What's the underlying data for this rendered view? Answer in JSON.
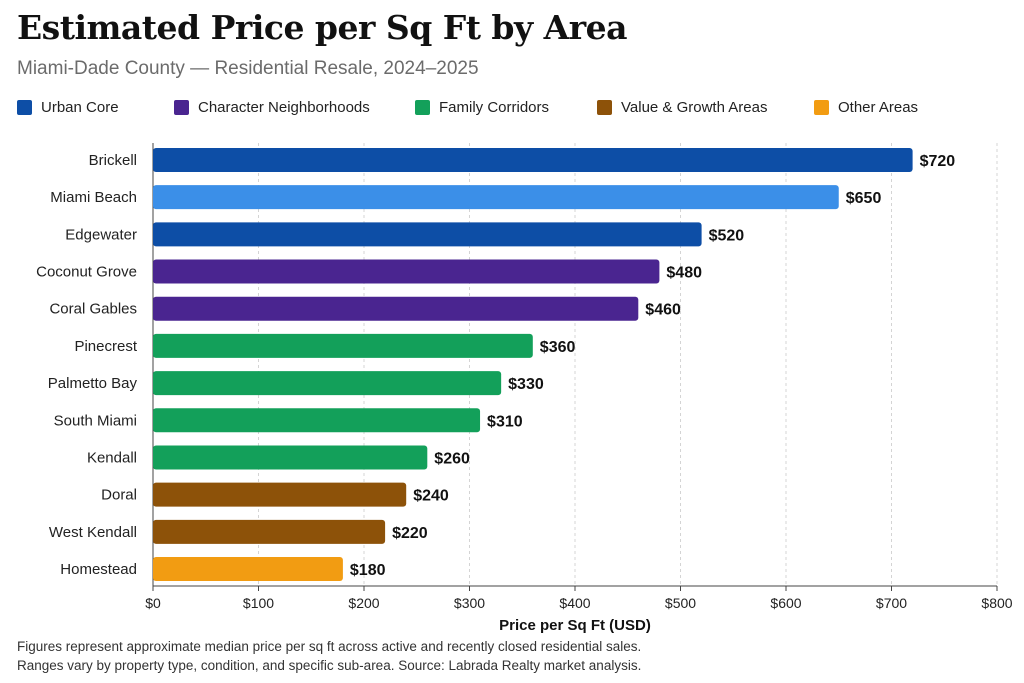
{
  "chart_data": {
    "type": "bar",
    "orientation": "horizontal",
    "title": "Estimated Price per Sq Ft by Area",
    "subtitle": "Miami-Dade County — Residential Resale, 2024–2025",
    "xlabel": "Price per Sq Ft (USD)",
    "ylabel": "",
    "xlim": [
      0,
      800
    ],
    "xticks": [
      0,
      100,
      200,
      300,
      400,
      500,
      600,
      700,
      800
    ],
    "xtick_labels": [
      "$0",
      "$100",
      "$200",
      "$300",
      "$400",
      "$500",
      "$600",
      "$700",
      "$800"
    ],
    "grid": "vertical dashed",
    "legend_position": "top",
    "groups": [
      {
        "name": "Urban Core",
        "color": "#0d4ea6"
      },
      {
        "name": "Character Neighborhoods",
        "color": "#4a2590"
      },
      {
        "name": "Family Corridors",
        "color": "#13a05a"
      },
      {
        "name": "Value & Growth Areas",
        "color": "#8d5209"
      },
      {
        "name": "Other Areas",
        "color": "#f29c12"
      }
    ],
    "categories": [
      "Brickell",
      "Miami Beach",
      "Edgewater",
      "Coconut Grove",
      "Coral Gables",
      "Pinecrest",
      "Palmetto Bay",
      "South Miami",
      "Kendall",
      "Doral",
      "West Kendall",
      "Homestead"
    ],
    "values": [
      720,
      650,
      520,
      480,
      460,
      360,
      330,
      310,
      260,
      240,
      220,
      180
    ],
    "value_labels": [
      "$720",
      "$650",
      "$520",
      "$480",
      "$460",
      "$360",
      "$330",
      "$310",
      "$260",
      "$240",
      "$220",
      "$180"
    ],
    "bar_colors": [
      "#0d4ea6",
      "#3b8fe8",
      "#0d4ea6",
      "#4a2590",
      "#4a2590",
      "#13a05a",
      "#13a05a",
      "#13a05a",
      "#13a05a",
      "#8d5209",
      "#8d5209",
      "#f29c12"
    ]
  },
  "footnote": {
    "line1": "Figures represent approximate median price per sq ft across active and recently closed residential sales.",
    "line2": "Ranges vary by property type, condition, and specific sub-area. Source: Labrada Realty market analysis."
  }
}
